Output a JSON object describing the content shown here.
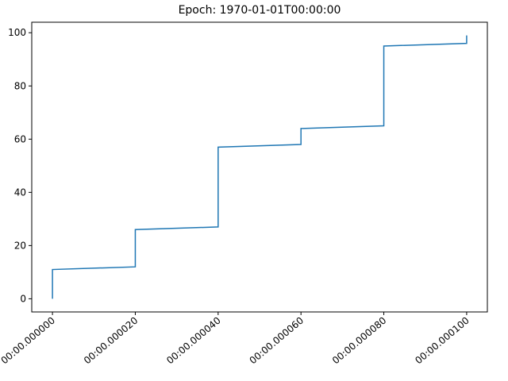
{
  "chart_data": {
    "type": "line",
    "title": "Epoch: 1970-01-01T00:00:00",
    "x": [
      0,
      0,
      20,
      20,
      40,
      40,
      60,
      60,
      80,
      80,
      100,
      100
    ],
    "series": [
      {
        "color": "#1f77b4",
        "values": [
          0,
          11,
          12,
          26,
          27,
          57,
          58,
          64,
          65,
          95,
          96,
          99
        ]
      }
    ],
    "xlim": [
      -5,
      105
    ],
    "xticks": [
      {
        "value": 0,
        "label": "00:00.000000"
      },
      {
        "value": 20,
        "label": "00:00.000020"
      },
      {
        "value": 40,
        "label": "00:00.000040"
      },
      {
        "value": 60,
        "label": "00:00.000060"
      },
      {
        "value": 80,
        "label": "00:00.000080"
      },
      {
        "value": 100,
        "label": "00:00.000100"
      }
    ],
    "ylim": [
      -4.95,
      103.95
    ],
    "yticks": [
      0,
      20,
      40,
      60,
      80,
      100
    ],
    "grid": false
  }
}
